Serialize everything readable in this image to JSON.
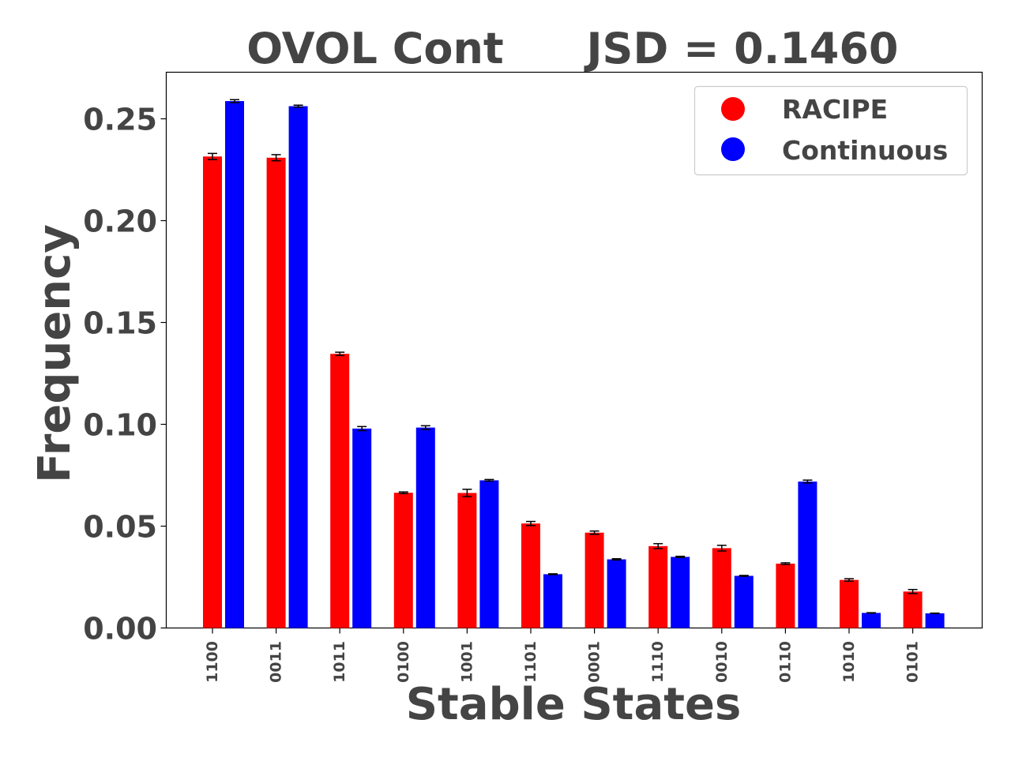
{
  "chart_data": {
    "type": "bar",
    "title_left": "OVOL Cont",
    "title_right": "JSD = 0.1460",
    "xlabel": "Stable States",
    "ylabel": "Frequency",
    "ylim": [
      0,
      0.272
    ],
    "yticks": [
      0.0,
      0.05,
      0.1,
      0.15,
      0.2,
      0.25
    ],
    "ytick_labels": [
      "0.00",
      "0.05",
      "0.10",
      "0.15",
      "0.20",
      "0.25"
    ],
    "categories": [
      "1100",
      "0011",
      "1011",
      "0100",
      "1001",
      "1101",
      "0001",
      "1110",
      "0010",
      "0110",
      "1010",
      "0101"
    ],
    "series": [
      {
        "name": "RACIPE",
        "color": "#ff0000",
        "values": [
          0.2315,
          0.2309,
          0.1346,
          0.0664,
          0.0663,
          0.0513,
          0.0468,
          0.0402,
          0.0392,
          0.0316,
          0.0236,
          0.0179
        ],
        "errors": [
          0.0015,
          0.0015,
          0.0008,
          0.0004,
          0.0018,
          0.001,
          0.0008,
          0.0012,
          0.0014,
          0.0004,
          0.0006,
          0.001
        ]
      },
      {
        "name": "Continuous",
        "color": "#0000ff",
        "values": [
          0.2587,
          0.2562,
          0.0979,
          0.0984,
          0.0725,
          0.0264,
          0.0337,
          0.0349,
          0.0256,
          0.0719,
          0.0074,
          0.0072
        ],
        "errors": [
          0.0007,
          0.0005,
          0.001,
          0.0009,
          0.0004,
          0.0002,
          0.0003,
          0.0003,
          0.0002,
          0.0007,
          0.0001,
          0.0001
        ]
      }
    ],
    "legend_position": "top-right",
    "grid": false
  }
}
